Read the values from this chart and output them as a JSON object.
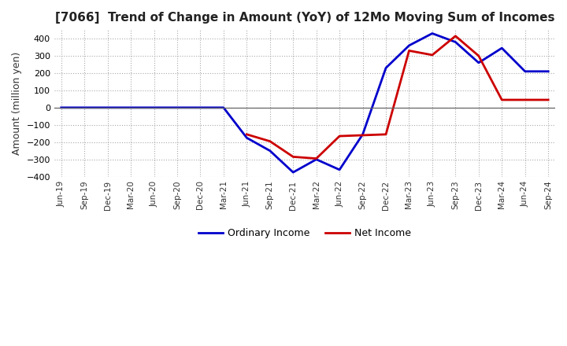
{
  "title": "[7066]  Trend of Change in Amount (YoY) of 12Mo Moving Sum of Incomes",
  "ylabel": "Amount (million yen)",
  "ylim": [
    -400,
    450
  ],
  "yticks": [
    -400,
    -300,
    -200,
    -100,
    0,
    100,
    200,
    300,
    400
  ],
  "background_color": "#ffffff",
  "ordinary_income_color": "#0000cc",
  "net_income_color": "#cc0000",
  "x_labels": [
    "Jun-19",
    "Sep-19",
    "Dec-19",
    "Mar-20",
    "Jun-20",
    "Sep-20",
    "Dec-20",
    "Mar-21",
    "Jun-21",
    "Sep-21",
    "Dec-21",
    "Mar-22",
    "Jun-22",
    "Sep-22",
    "Dec-22",
    "Mar-23",
    "Jun-23",
    "Sep-23",
    "Dec-23",
    "Mar-24",
    "Jun-24",
    "Sep-24"
  ],
  "ordinary_income": [
    null,
    null,
    null,
    null,
    null,
    null,
    null,
    null,
    -175,
    -250,
    -375,
    -300,
    -360,
    -155,
    230,
    360,
    430,
    380,
    260,
    345,
    210,
    null
  ],
  "net_income": [
    null,
    null,
    null,
    null,
    null,
    null,
    null,
    null,
    null,
    null,
    null,
    null,
    null,
    null,
    null,
    null,
    null,
    null,
    null,
    null,
    null,
    null
  ],
  "ordinary_income_full": [
    0,
    0,
    0,
    0,
    0,
    0,
    0,
    0,
    -175,
    -250,
    -375,
    -300,
    -360,
    -155,
    230,
    360,
    430,
    380,
    260,
    345,
    210,
    210
  ],
  "net_income_full": [
    null,
    null,
    null,
    null,
    null,
    null,
    null,
    null,
    -155,
    -195,
    -285,
    -295,
    -165,
    -160,
    -155,
    330,
    305,
    415,
    300,
    45,
    45,
    45
  ],
  "legend_ordinary": "Ordinary Income",
  "legend_net": "Net Income"
}
